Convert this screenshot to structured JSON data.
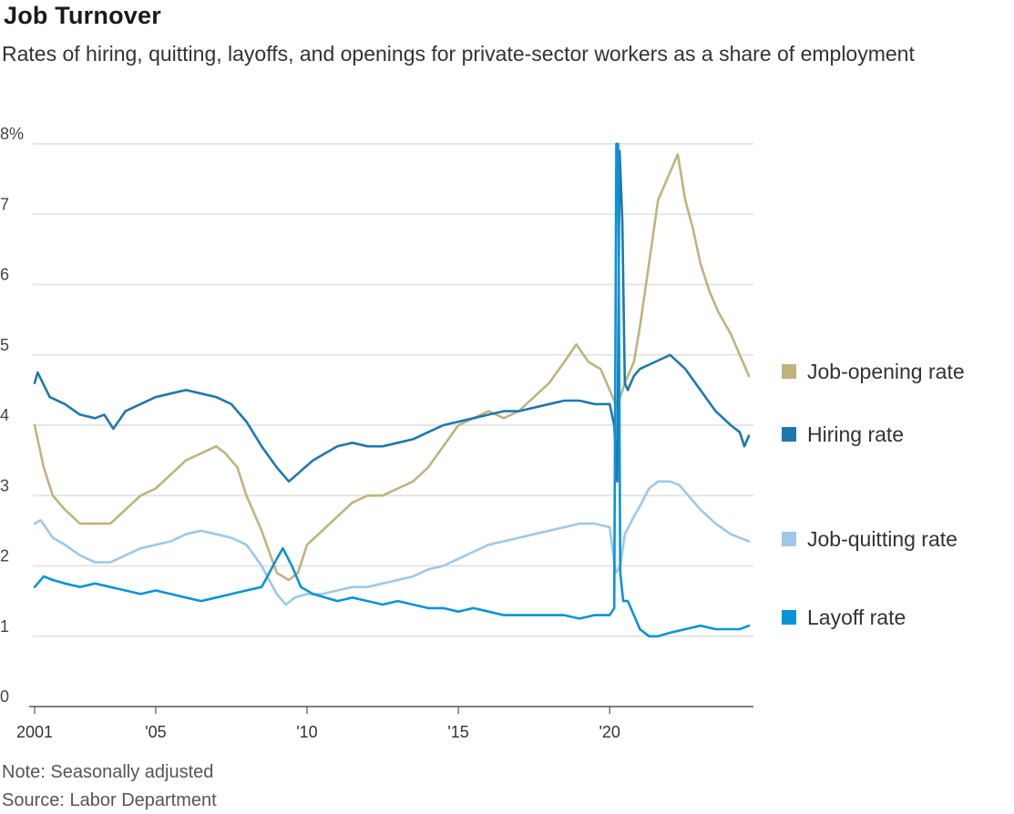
{
  "header": {
    "title": "Job Turnover",
    "subtitle": "Rates of hiring, quitting, layoffs, and openings for private-sector workers as a share of employment"
  },
  "footer": {
    "note": "Note: Seasonally adjusted",
    "source": "Source: Labor Department"
  },
  "chart_data": {
    "type": "line",
    "title": "Job Turnover",
    "xlabel": "",
    "ylabel": "",
    "xlim": [
      2001,
      2024.6
    ],
    "ylim": [
      0,
      8
    ],
    "grid": true,
    "legend_placement": "right",
    "y_ticks": [
      {
        "value": 0,
        "label": "0"
      },
      {
        "value": 1,
        "label": "1"
      },
      {
        "value": 2,
        "label": "2"
      },
      {
        "value": 3,
        "label": "3"
      },
      {
        "value": 4,
        "label": "4"
      },
      {
        "value": 5,
        "label": "5"
      },
      {
        "value": 6,
        "label": "6"
      },
      {
        "value": 7,
        "label": "7"
      },
      {
        "value": 8,
        "label": "8%"
      }
    ],
    "x_ticks": [
      {
        "value": 2001,
        "label": "2001"
      },
      {
        "value": 2005,
        "label": "'05"
      },
      {
        "value": 2010,
        "label": "'10"
      },
      {
        "value": 2015,
        "label": "'15"
      },
      {
        "value": 2020,
        "label": "'20"
      }
    ],
    "series": [
      {
        "name": "Job-opening rate",
        "color": "#bfb37f",
        "x": [
          2001.0,
          2001.3,
          2001.6,
          2002.0,
          2002.5,
          2003.0,
          2003.5,
          2004.0,
          2004.5,
          2005.0,
          2005.5,
          2006.0,
          2006.5,
          2007.0,
          2007.3,
          2007.7,
          2008.0,
          2008.5,
          2009.0,
          2009.4,
          2009.7,
          2010.0,
          2010.5,
          2011.0,
          2011.5,
          2012.0,
          2012.5,
          2013.0,
          2013.5,
          2014.0,
          2014.5,
          2015.0,
          2015.5,
          2016.0,
          2016.5,
          2017.0,
          2017.5,
          2018.0,
          2018.5,
          2018.9,
          2019.3,
          2019.7,
          2020.0,
          2020.2,
          2020.35,
          2020.5,
          2020.8,
          2021.0,
          2021.3,
          2021.6,
          2022.0,
          2022.25,
          2022.5,
          2022.75,
          2023.0,
          2023.3,
          2023.6,
          2024.0,
          2024.3,
          2024.6
        ],
        "y": [
          4.0,
          3.4,
          3.0,
          2.8,
          2.6,
          2.6,
          2.6,
          2.8,
          3.0,
          3.1,
          3.3,
          3.5,
          3.6,
          3.7,
          3.6,
          3.4,
          3.0,
          2.5,
          1.9,
          1.8,
          1.9,
          2.3,
          2.5,
          2.7,
          2.9,
          3.0,
          3.0,
          3.1,
          3.2,
          3.4,
          3.7,
          4.0,
          4.1,
          4.2,
          4.1,
          4.2,
          4.4,
          4.6,
          4.9,
          5.15,
          4.9,
          4.8,
          4.5,
          4.3,
          4.4,
          4.6,
          4.9,
          5.4,
          6.3,
          7.2,
          7.6,
          7.85,
          7.2,
          6.8,
          6.3,
          5.9,
          5.6,
          5.3,
          5.0,
          4.7
        ]
      },
      {
        "name": "Hiring rate",
        "color": "#1f78ad",
        "x": [
          2001.0,
          2001.1,
          2001.5,
          2002.0,
          2002.5,
          2003.0,
          2003.3,
          2003.6,
          2004.0,
          2004.5,
          2005.0,
          2005.5,
          2006.0,
          2006.5,
          2007.0,
          2007.5,
          2008.0,
          2008.5,
          2009.0,
          2009.4,
          2009.8,
          2010.2,
          2010.6,
          2011.0,
          2011.5,
          2012.0,
          2012.5,
          2013.0,
          2013.5,
          2014.0,
          2014.5,
          2015.0,
          2015.5,
          2016.0,
          2016.5,
          2017.0,
          2017.5,
          2018.0,
          2018.5,
          2019.0,
          2019.5,
          2020.0,
          2020.15,
          2020.25,
          2020.33,
          2020.42,
          2020.5,
          2020.6,
          2020.8,
          2021.0,
          2021.5,
          2022.0,
          2022.5,
          2023.0,
          2023.5,
          2024.0,
          2024.3,
          2024.45,
          2024.6
        ],
        "y": [
          4.6,
          4.75,
          4.4,
          4.3,
          4.15,
          4.1,
          4.15,
          3.95,
          4.2,
          4.3,
          4.4,
          4.45,
          4.5,
          4.45,
          4.4,
          4.3,
          4.05,
          3.7,
          3.4,
          3.2,
          3.35,
          3.5,
          3.6,
          3.7,
          3.75,
          3.7,
          3.7,
          3.75,
          3.8,
          3.9,
          4.0,
          4.05,
          4.1,
          4.15,
          4.2,
          4.2,
          4.25,
          4.3,
          4.35,
          4.35,
          4.3,
          4.3,
          4.0,
          3.2,
          7.9,
          6.9,
          4.6,
          4.5,
          4.7,
          4.8,
          4.9,
          5.0,
          4.8,
          4.5,
          4.2,
          4.0,
          3.9,
          3.7,
          3.85
        ]
      },
      {
        "name": "Job-quitting rate",
        "color": "#9dc8ea",
        "x": [
          2001.0,
          2001.2,
          2001.6,
          2002.0,
          2002.5,
          2003.0,
          2003.5,
          2004.0,
          2004.5,
          2005.0,
          2005.5,
          2006.0,
          2006.5,
          2007.0,
          2007.5,
          2008.0,
          2008.5,
          2009.0,
          2009.3,
          2009.6,
          2010.0,
          2010.5,
          2011.0,
          2011.5,
          2012.0,
          2012.5,
          2013.0,
          2013.5,
          2014.0,
          2014.5,
          2015.0,
          2015.5,
          2016.0,
          2016.5,
          2017.0,
          2017.5,
          2018.0,
          2018.5,
          2019.0,
          2019.5,
          2020.0,
          2020.2,
          2020.35,
          2020.5,
          2020.8,
          2021.0,
          2021.3,
          2021.6,
          2022.0,
          2022.3,
          2022.6,
          2023.0,
          2023.5,
          2024.0,
          2024.3,
          2024.6
        ],
        "y": [
          2.6,
          2.65,
          2.4,
          2.3,
          2.15,
          2.05,
          2.05,
          2.15,
          2.25,
          2.3,
          2.35,
          2.45,
          2.5,
          2.45,
          2.4,
          2.3,
          2.0,
          1.6,
          1.45,
          1.55,
          1.6,
          1.6,
          1.65,
          1.7,
          1.7,
          1.75,
          1.8,
          1.85,
          1.95,
          2.0,
          2.1,
          2.2,
          2.3,
          2.35,
          2.4,
          2.45,
          2.5,
          2.55,
          2.6,
          2.6,
          2.55,
          1.9,
          2.0,
          2.45,
          2.7,
          2.85,
          3.1,
          3.2,
          3.2,
          3.15,
          3.0,
          2.8,
          2.6,
          2.45,
          2.4,
          2.35
        ]
      },
      {
        "name": "Layoff rate",
        "color": "#0a93d7",
        "x": [
          2001.0,
          2001.3,
          2001.6,
          2002.0,
          2002.5,
          2003.0,
          2003.5,
          2004.0,
          2004.5,
          2005.0,
          2005.5,
          2006.0,
          2006.5,
          2007.0,
          2007.5,
          2008.0,
          2008.5,
          2009.0,
          2009.2,
          2009.5,
          2009.8,
          2010.2,
          2010.6,
          2011.0,
          2011.5,
          2012.0,
          2012.5,
          2013.0,
          2013.5,
          2014.0,
          2014.5,
          2015.0,
          2015.5,
          2016.0,
          2016.5,
          2017.0,
          2017.5,
          2018.0,
          2018.5,
          2019.0,
          2019.5,
          2020.0,
          2020.15,
          2020.22,
          2020.28,
          2020.35,
          2020.45,
          2020.6,
          2020.8,
          2021.0,
          2021.3,
          2021.6,
          2022.0,
          2022.5,
          2023.0,
          2023.5,
          2024.0,
          2024.3,
          2024.6
        ],
        "y": [
          1.7,
          1.85,
          1.8,
          1.75,
          1.7,
          1.75,
          1.7,
          1.65,
          1.6,
          1.65,
          1.6,
          1.55,
          1.5,
          1.55,
          1.6,
          1.65,
          1.7,
          2.1,
          2.25,
          2.0,
          1.7,
          1.6,
          1.55,
          1.5,
          1.55,
          1.5,
          1.45,
          1.5,
          1.45,
          1.4,
          1.4,
          1.35,
          1.4,
          1.35,
          1.3,
          1.3,
          1.3,
          1.3,
          1.3,
          1.25,
          1.3,
          1.3,
          1.4,
          8.0,
          8.0,
          1.9,
          1.5,
          1.5,
          1.3,
          1.1,
          1.0,
          1.0,
          1.05,
          1.1,
          1.15,
          1.1,
          1.1,
          1.1,
          1.15
        ]
      }
    ]
  }
}
